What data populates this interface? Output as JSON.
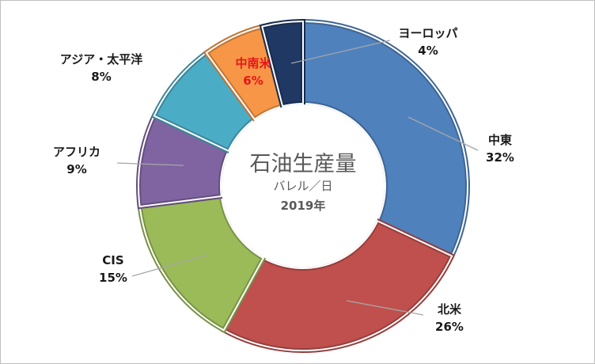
{
  "chart_data": {
    "type": "pie",
    "subtype": "donut",
    "title": "石油生産量",
    "unit": "バレル／日",
    "year": "2019年",
    "slices": [
      {
        "label": "中東",
        "value": 32,
        "pct_label": "32%",
        "color": "#4f81bd",
        "label_color": "#1a1a1a"
      },
      {
        "label": "北米",
        "value": 26,
        "pct_label": "26%",
        "color": "#c0504d",
        "label_color": "#1a1a1a"
      },
      {
        "label": "CIS",
        "value": 15,
        "pct_label": "15%",
        "color": "#9bbb59",
        "label_color": "#1a1a1a"
      },
      {
        "label": "アフリカ",
        "value": 9,
        "pct_label": "9%",
        "color": "#8064a2",
        "label_color": "#1a1a1a"
      },
      {
        "label": "アジア・太平洋",
        "value": 8,
        "pct_label": "8%",
        "color": "#4bacc6",
        "label_color": "#1a1a1a"
      },
      {
        "label": "中南米",
        "value": 6,
        "pct_label": "6%",
        "color": "#f79646",
        "label_color": "#e8141b"
      },
      {
        "label": "ヨーロッパ",
        "value": 4,
        "pct_label": "4%",
        "color": "#1f3864",
        "label_color": "#1a1a1a"
      }
    ],
    "legend": "none"
  }
}
